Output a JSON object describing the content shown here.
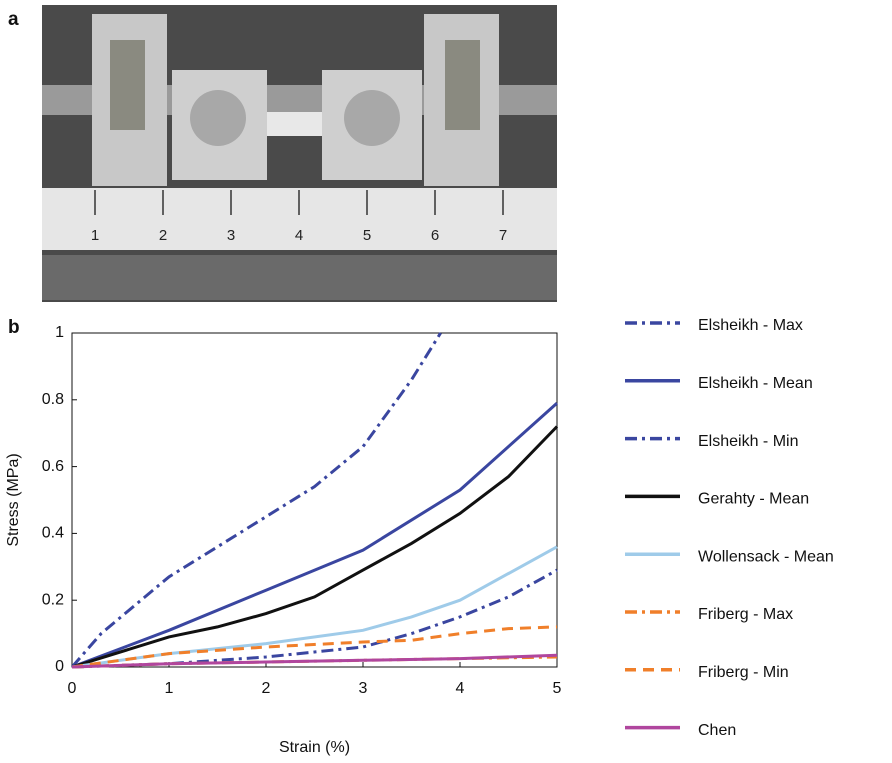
{
  "panel_labels": [
    "a",
    "b"
  ],
  "photo": {
    "ruler_labels": [
      "1",
      "2",
      "3",
      "4",
      "5",
      "6",
      "7"
    ]
  },
  "chart_data": {
    "type": "line",
    "x_label": "Strain (%)",
    "y_label": "Stress (MPa)",
    "xlim": [
      0,
      5
    ],
    "xticks": [
      0,
      1,
      2,
      3,
      4,
      5
    ],
    "ylim": [
      0,
      1
    ],
    "yticks": [
      0,
      0.2,
      0.4,
      0.6,
      0.8,
      1
    ],
    "legend": "right",
    "series": [
      {
        "name": "Elsheikh - Max",
        "color": "#3a46a0",
        "dash": "dashdot",
        "x": [
          0,
          0.3,
          1,
          1.5,
          2,
          2.5,
          3,
          3.5,
          3.8
        ],
        "values": [
          0,
          0.1,
          0.27,
          0.36,
          0.45,
          0.54,
          0.66,
          0.86,
          1.0
        ]
      },
      {
        "name": "Elsheikh - Mean",
        "color": "#3a46a0",
        "dash": "solid",
        "x": [
          0,
          1,
          2,
          3,
          4,
          5
        ],
        "values": [
          0,
          0.11,
          0.23,
          0.35,
          0.53,
          0.79
        ]
      },
      {
        "name": "Elsheikh - Min",
        "color": "#3a46a0",
        "dash": "dashdot",
        "x": [
          0,
          1,
          2,
          3,
          3.5,
          4,
          4.5,
          5
        ],
        "values": [
          0,
          0.01,
          0.03,
          0.06,
          0.1,
          0.15,
          0.21,
          0.29
        ]
      },
      {
        "name": "Gerahty - Mean",
        "color": "#111111",
        "dash": "solid",
        "x": [
          0,
          1,
          1.5,
          2,
          2.5,
          3,
          3.5,
          4,
          4.5,
          5
        ],
        "values": [
          0,
          0.09,
          0.12,
          0.16,
          0.21,
          0.29,
          0.37,
          0.46,
          0.57,
          0.72
        ]
      },
      {
        "name": "Wollensack - Mean",
        "color": "#9fcbe9",
        "dash": "solid",
        "x": [
          0,
          1,
          2,
          3,
          3.5,
          4,
          4.5,
          5
        ],
        "values": [
          0,
          0.04,
          0.07,
          0.11,
          0.15,
          0.2,
          0.28,
          0.36
        ]
      },
      {
        "name": "Friberg - Max",
        "color": "#f07f2a",
        "dash": "dashdot",
        "x": [
          0,
          1,
          2,
          3,
          4,
          5
        ],
        "values": [
          0,
          0.01,
          0.015,
          0.02,
          0.025,
          0.03
        ]
      },
      {
        "name": "Friberg - Min",
        "color": "#f07f2a",
        "dash": "dashed",
        "x": [
          0,
          1,
          2,
          3,
          3.5,
          4,
          4.5,
          5
        ],
        "values": [
          0,
          0.04,
          0.06,
          0.075,
          0.08,
          0.1,
          0.115,
          0.12
        ]
      },
      {
        "name": "Chen",
        "color": "#b0469e",
        "dash": "solid",
        "x": [
          0,
          1,
          2,
          3,
          4,
          5
        ],
        "values": [
          0,
          0.01,
          0.015,
          0.02,
          0.025,
          0.035
        ]
      }
    ]
  }
}
